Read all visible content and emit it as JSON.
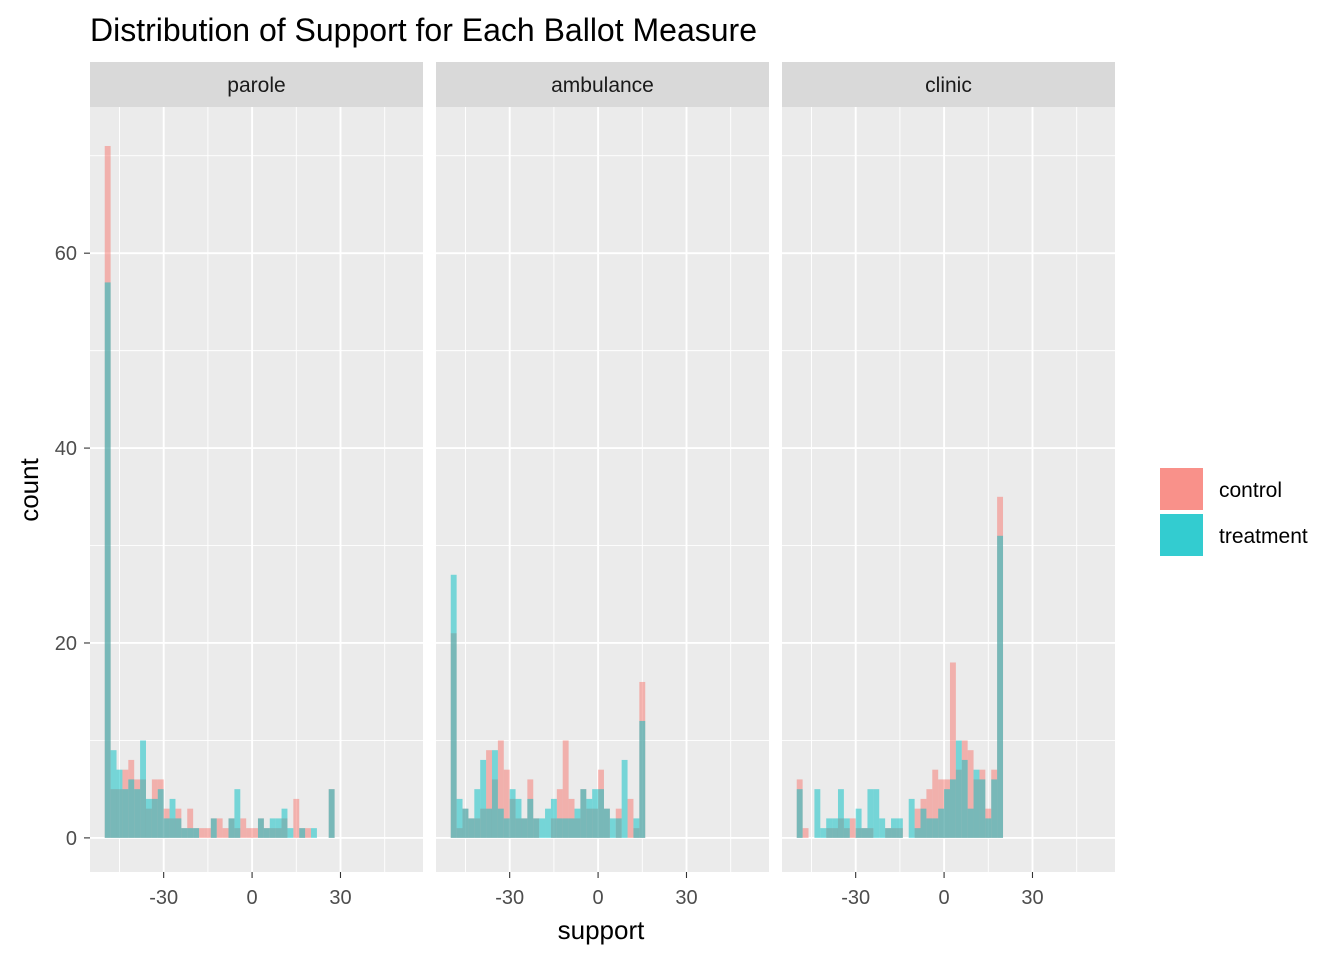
{
  "chart_data": {
    "type": "histogram",
    "title": "Distribution of Support for Each Ballot Measure",
    "xlabel": "support",
    "ylabel": "count",
    "x_ticks": [
      -30,
      0,
      30
    ],
    "y_ticks": [
      0,
      20,
      40,
      60
    ],
    "xlim": [
      -55,
      58
    ],
    "ylim": [
      -3.5,
      75
    ],
    "bin_start": -50,
    "bin_width": 2,
    "grid": true,
    "legend_position": "right",
    "colors": {
      "control": "#F8766D",
      "treatment": "#00BFC4",
      "overlap": "#7CBAB1"
    },
    "series_names": [
      "control",
      "treatment"
    ],
    "panels": [
      {
        "name": "parole",
        "control": [
          71,
          5,
          5,
          7,
          8,
          6,
          6,
          3,
          6,
          6,
          3,
          2,
          3,
          1,
          3,
          1,
          1,
          1,
          2,
          2,
          1,
          2,
          1,
          2,
          1,
          1,
          2,
          1,
          1,
          1,
          2,
          0,
          4,
          1,
          1,
          0,
          0,
          0,
          5
        ],
        "treatment": [
          57,
          9,
          7,
          5,
          6,
          5,
          10,
          4,
          4,
          5,
          2,
          4,
          2,
          1,
          1,
          1,
          0,
          0,
          2,
          0,
          0,
          2,
          5,
          0,
          0,
          0,
          2,
          1,
          2,
          2,
          3,
          1,
          0,
          1,
          0,
          1,
          0,
          0,
          5
        ]
      },
      {
        "name": "ambulance",
        "control": [
          21,
          1,
          3,
          2,
          2,
          3,
          9,
          6,
          10,
          7,
          4,
          2,
          2,
          6,
          2,
          0,
          0,
          2,
          5,
          10,
          4,
          2,
          5,
          3,
          3,
          7,
          3,
          0,
          3,
          0,
          4,
          1,
          16
        ],
        "treatment": [
          27,
          4,
          3,
          2,
          5,
          8,
          3,
          9,
          3,
          2,
          5,
          4,
          2,
          4,
          2,
          2,
          3,
          4,
          2,
          2,
          2,
          3,
          5,
          4,
          5,
          5,
          3,
          2,
          2,
          8,
          0,
          2,
          12
        ]
      },
      {
        "name": "clinic",
        "control": [
          6,
          1,
          0,
          0,
          0,
          1,
          1,
          2,
          1,
          2,
          1,
          1,
          1,
          0,
          0,
          1,
          1,
          1,
          0,
          0,
          3,
          4,
          5,
          7,
          6,
          6,
          18,
          7,
          10,
          9,
          6,
          7,
          3,
          7,
          35
        ],
        "treatment": [
          5,
          0,
          0,
          5,
          1,
          2,
          2,
          5,
          2,
          0,
          3,
          1,
          5,
          5,
          2,
          1,
          2,
          2,
          0,
          4,
          1,
          3,
          2,
          2,
          3,
          5,
          6,
          10,
          8,
          3,
          7,
          6,
          2,
          6,
          31
        ]
      }
    ]
  }
}
